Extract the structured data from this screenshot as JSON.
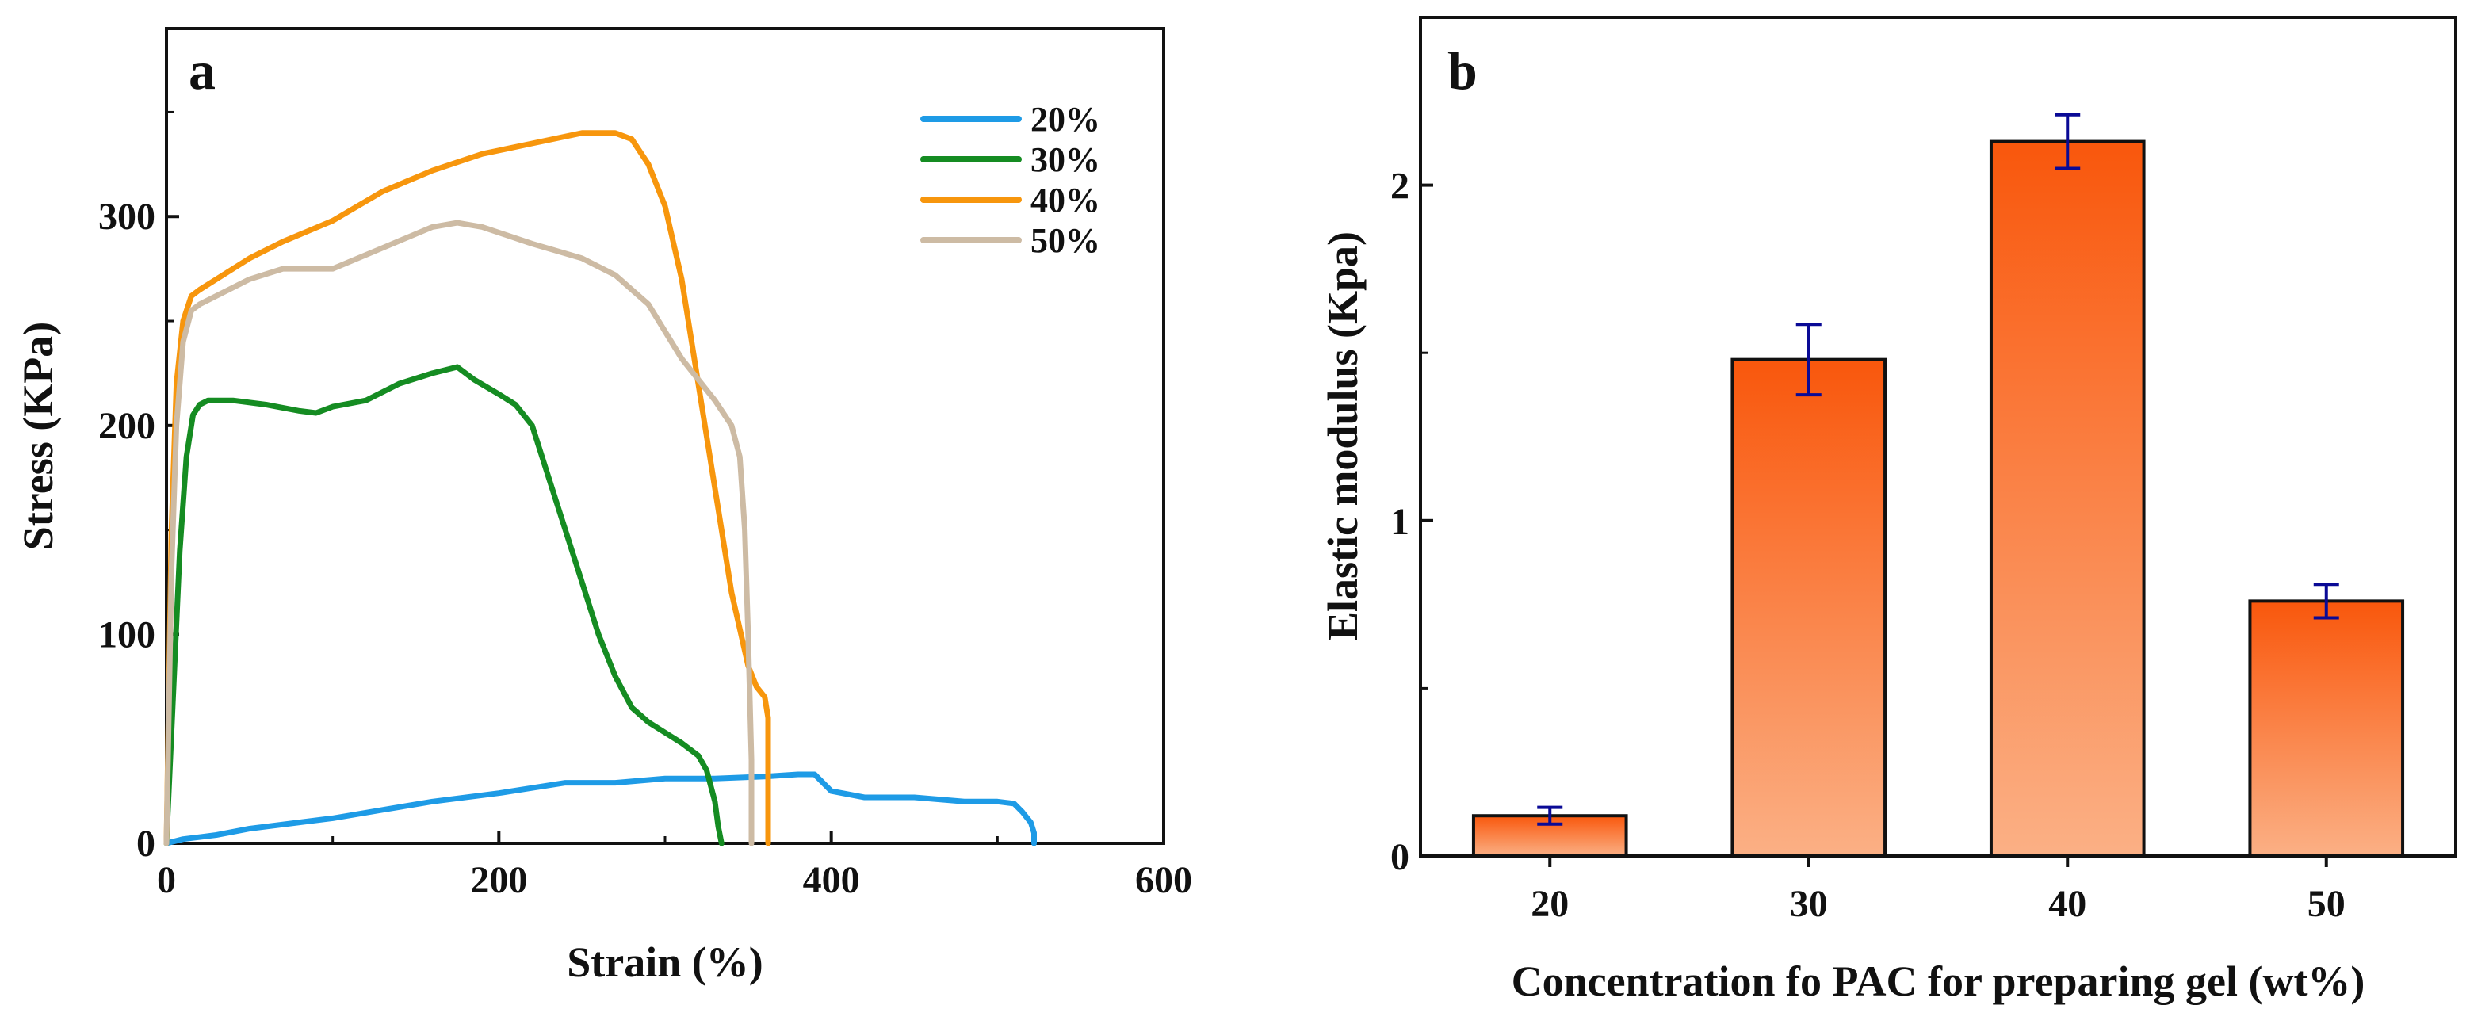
{
  "chart_data": [
    {
      "panel": "a",
      "type": "line",
      "title": "",
      "xlabel": "Strain (%)",
      "ylabel": "Stress (KPa)",
      "xlim": [
        0,
        600
      ],
      "ylim": [
        0,
        390
      ],
      "xticks": [
        0,
        200,
        400,
        600
      ],
      "yticks": [
        0,
        100,
        200,
        300
      ],
      "legend_position": "top-right",
      "series": [
        {
          "name": "20%",
          "color": "#1e9be6",
          "x": [
            0,
            10,
            30,
            50,
            80,
            100,
            130,
            160,
            200,
            240,
            270,
            300,
            330,
            360,
            380,
            390,
            400,
            420,
            450,
            480,
            500,
            510,
            515,
            518,
            520,
            522,
            522
          ],
          "y": [
            0,
            2,
            4,
            7,
            10,
            12,
            16,
            20,
            24,
            29,
            29,
            31,
            31,
            32,
            33,
            33,
            25,
            22,
            22,
            20,
            20,
            19,
            15,
            12,
            10,
            5,
            0
          ]
        },
        {
          "name": "30%",
          "color": "#158c22",
          "x": [
            0,
            4,
            8,
            12,
            16,
            20,
            25,
            40,
            60,
            80,
            90,
            100,
            120,
            140,
            160,
            175,
            185,
            200,
            210,
            220,
            230,
            240,
            250,
            260,
            270,
            280,
            290,
            300,
            310,
            320,
            325,
            330,
            332,
            334
          ],
          "y": [
            0,
            70,
            140,
            185,
            205,
            210,
            212,
            212,
            210,
            207,
            206,
            209,
            212,
            220,
            225,
            228,
            222,
            215,
            210,
            200,
            175,
            150,
            125,
            100,
            80,
            65,
            58,
            53,
            48,
            42,
            35,
            20,
            8,
            0
          ]
        },
        {
          "name": "40%",
          "color": "#f7960d",
          "x": [
            0,
            3,
            6,
            10,
            15,
            20,
            30,
            50,
            70,
            100,
            130,
            160,
            190,
            220,
            250,
            270,
            280,
            290,
            300,
            310,
            320,
            330,
            340,
            350,
            355,
            360,
            362,
            362
          ],
          "y": [
            0,
            150,
            220,
            250,
            262,
            265,
            270,
            280,
            288,
            298,
            312,
            322,
            330,
            335,
            340,
            340,
            337,
            325,
            305,
            270,
            220,
            170,
            120,
            85,
            75,
            70,
            60,
            0
          ]
        },
        {
          "name": "50%",
          "color": "#cdbba4",
          "x": [
            0,
            3,
            6,
            10,
            15,
            20,
            30,
            50,
            70,
            100,
            130,
            160,
            175,
            190,
            220,
            250,
            270,
            290,
            300,
            310,
            320,
            330,
            340,
            345,
            348,
            350,
            352,
            352
          ],
          "y": [
            0,
            130,
            200,
            240,
            255,
            258,
            262,
            270,
            275,
            275,
            285,
            295,
            297,
            295,
            287,
            280,
            272,
            258,
            245,
            232,
            222,
            212,
            200,
            185,
            150,
            100,
            40,
            0
          ]
        }
      ]
    },
    {
      "panel": "b",
      "type": "bar",
      "title": "",
      "xlabel": "Concentration fo PAC for preparing gel (wt%)",
      "ylabel": "Elastic modulus (Kpa)",
      "ylim": [
        0,
        2.5
      ],
      "yticks": [
        0,
        1,
        2
      ],
      "categories": [
        "20",
        "30",
        "40",
        "50"
      ],
      "values": [
        0.12,
        1.48,
        2.13,
        0.76
      ],
      "errors": [
        0.025,
        0.105,
        0.08,
        0.05
      ],
      "bar_color_top": "#f9570c",
      "bar_color_bottom": "#fbb085",
      "error_color": "#0a0a96"
    }
  ]
}
